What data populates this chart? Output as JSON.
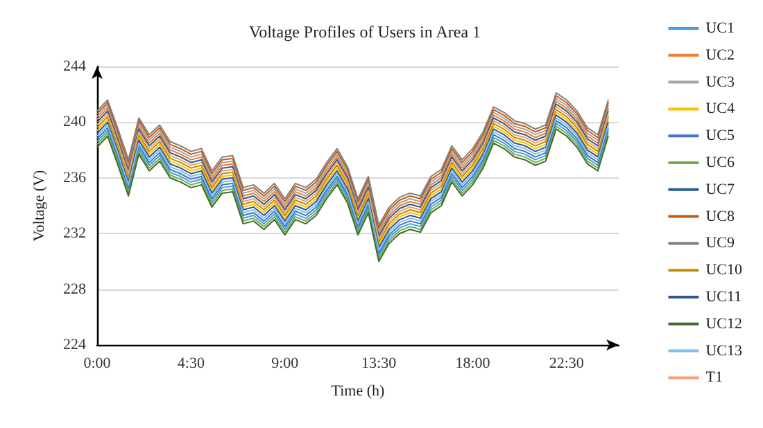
{
  "chart_data": {
    "type": "line",
    "title": "Voltage Profiles of Users in Area 1",
    "xlabel": "Time (h)",
    "ylabel": "Voltage (V)",
    "x": [
      0,
      0.5,
      1,
      1.5,
      2,
      2.5,
      3,
      3.5,
      4,
      4.5,
      5,
      5.5,
      6,
      6.5,
      7,
      7.5,
      8,
      8.5,
      9,
      9.5,
      10,
      10.5,
      11,
      11.5,
      12,
      12.5,
      13,
      13.5,
      14,
      14.5,
      15,
      15.5,
      16,
      16.5,
      17,
      17.5,
      18,
      18.5,
      19,
      19.5,
      20,
      20.5,
      21,
      21.5,
      22,
      22.5,
      23,
      23.5,
      24,
      24.5
    ],
    "xlim": [
      0,
      25
    ],
    "xticks": [
      {
        "value": 0,
        "label": "0:00"
      },
      {
        "value": 4.5,
        "label": "4:30"
      },
      {
        "value": 9,
        "label": "9:00"
      },
      {
        "value": 13.5,
        "label": "13:30"
      },
      {
        "value": 18,
        "label": "18:00"
      },
      {
        "value": 22.5,
        "label": "22:30"
      }
    ],
    "ylim": [
      224,
      244
    ],
    "yticks": [
      224,
      228,
      232,
      236,
      240,
      244
    ],
    "grid": "y",
    "legend": "right",
    "marker": "none",
    "line_style": "solid",
    "series": [
      {
        "name": "UC1",
        "color": "#3fa0e0",
        "values": [
          238.6,
          239.4,
          237.3,
          235.1,
          238.1,
          236.9,
          237.6,
          236.4,
          236.1,
          235.7,
          235.9,
          234.3,
          235.3,
          235.4,
          233.1,
          233.3,
          232.7,
          233.4,
          232.3,
          233.4,
          233.1,
          233.7,
          234.9,
          235.9,
          234.6,
          232.3,
          233.9,
          230.4,
          231.7,
          232.4,
          232.7,
          232.5,
          233.9,
          234.4,
          236.1,
          235.1,
          235.9,
          237.1,
          238.9,
          238.5,
          237.9,
          237.7,
          237.3,
          237.6,
          239.9,
          239.4,
          238.6,
          237.4,
          236.9,
          239.4
        ]
      },
      {
        "name": "UC2",
        "color": "#ed7d31",
        "values": [
          240.2,
          241.0,
          238.9,
          236.7,
          239.7,
          238.5,
          239.2,
          238.0,
          237.7,
          237.3,
          237.5,
          235.9,
          236.9,
          237.0,
          234.7,
          234.9,
          234.3,
          235.0,
          233.9,
          235.0,
          234.7,
          235.3,
          236.5,
          237.5,
          236.2,
          233.9,
          235.5,
          232.0,
          233.3,
          234.0,
          234.3,
          234.1,
          235.5,
          236.0,
          237.7,
          236.7,
          237.5,
          238.7,
          240.5,
          240.1,
          239.5,
          239.3,
          238.9,
          239.2,
          241.5,
          241.0,
          240.2,
          239.0,
          238.5,
          241.0
        ]
      },
      {
        "name": "UC3",
        "color": "#a5a5a5",
        "values": [
          240.4,
          241.2,
          239.1,
          236.9,
          239.9,
          238.7,
          239.4,
          238.2,
          237.9,
          237.5,
          237.7,
          236.1,
          237.1,
          237.2,
          234.9,
          235.1,
          234.5,
          235.2,
          234.1,
          235.2,
          234.9,
          235.5,
          236.7,
          237.7,
          236.4,
          234.1,
          235.7,
          232.2,
          233.5,
          234.2,
          234.5,
          234.3,
          235.7,
          236.2,
          237.9,
          236.9,
          237.7,
          238.9,
          240.7,
          240.3,
          239.7,
          239.5,
          239.1,
          239.4,
          241.7,
          241.2,
          240.4,
          239.2,
          238.7,
          241.2
        ]
      },
      {
        "name": "UC4",
        "color": "#ffc000",
        "values": [
          239.4,
          240.2,
          238.1,
          235.9,
          238.9,
          237.7,
          238.4,
          237.2,
          236.9,
          236.5,
          236.7,
          235.1,
          236.1,
          236.2,
          233.9,
          234.1,
          233.5,
          234.2,
          233.1,
          234.2,
          233.9,
          234.5,
          235.7,
          236.7,
          235.4,
          233.1,
          234.7,
          231.2,
          232.5,
          233.2,
          233.5,
          233.3,
          234.7,
          235.2,
          236.9,
          235.9,
          236.7,
          237.9,
          239.7,
          239.3,
          238.7,
          238.5,
          238.1,
          238.4,
          240.7,
          240.2,
          239.4,
          238.2,
          237.7,
          240.2
        ]
      },
      {
        "name": "UC5",
        "color": "#4472c4",
        "values": [
          238.8,
          239.6,
          237.5,
          235.3,
          238.3,
          237.1,
          237.8,
          236.6,
          236.3,
          235.9,
          236.1,
          234.5,
          235.5,
          235.6,
          233.3,
          233.5,
          232.9,
          233.6,
          232.5,
          233.6,
          233.3,
          233.9,
          235.1,
          236.1,
          234.8,
          232.5,
          234.1,
          230.6,
          231.9,
          232.6,
          232.9,
          232.7,
          234.1,
          234.6,
          236.3,
          235.3,
          236.1,
          237.3,
          239.1,
          238.7,
          238.1,
          237.9,
          237.5,
          237.8,
          240.1,
          239.6,
          238.8,
          237.6,
          237.1,
          239.6
        ]
      },
      {
        "name": "UC6",
        "color": "#70ad47",
        "values": [
          238.4,
          239.2,
          237.1,
          234.9,
          237.9,
          236.7,
          237.4,
          236.2,
          235.9,
          235.5,
          235.7,
          234.1,
          235.1,
          235.2,
          232.9,
          233.1,
          232.5,
          233.2,
          232.1,
          233.2,
          232.9,
          233.5,
          234.7,
          235.7,
          234.4,
          232.1,
          233.7,
          230.2,
          231.5,
          232.2,
          232.5,
          232.3,
          233.7,
          234.2,
          235.9,
          234.9,
          235.7,
          236.9,
          238.7,
          238.3,
          237.7,
          237.5,
          237.1,
          237.4,
          239.7,
          239.2,
          238.4,
          237.2,
          236.7,
          239.2
        ]
      },
      {
        "name": "UC7",
        "color": "#255e91",
        "values": [
          240.0,
          240.8,
          238.7,
          236.5,
          239.5,
          238.3,
          239.0,
          237.8,
          237.5,
          237.1,
          237.3,
          235.7,
          236.7,
          236.8,
          234.5,
          234.7,
          234.1,
          234.8,
          233.7,
          234.8,
          234.5,
          235.1,
          236.3,
          237.3,
          236.0,
          233.7,
          235.3,
          231.8,
          233.1,
          233.8,
          234.1,
          233.9,
          235.3,
          235.8,
          237.5,
          236.5,
          237.3,
          238.5,
          240.3,
          239.9,
          239.3,
          239.1,
          238.7,
          239.0,
          241.3,
          240.8,
          240.0,
          238.8,
          238.3,
          240.8
        ]
      },
      {
        "name": "UC8",
        "color": "#c55a11",
        "values": [
          240.6,
          241.4,
          239.3,
          237.1,
          240.1,
          238.9,
          239.6,
          238.4,
          238.1,
          237.7,
          237.9,
          236.3,
          237.3,
          237.4,
          235.1,
          235.3,
          234.7,
          235.4,
          234.3,
          235.4,
          235.1,
          235.7,
          236.9,
          237.9,
          236.6,
          234.3,
          235.9,
          232.4,
          233.7,
          234.4,
          234.7,
          234.5,
          235.9,
          236.4,
          238.1,
          237.1,
          237.9,
          239.1,
          240.9,
          240.5,
          239.9,
          239.7,
          239.3,
          239.6,
          241.9,
          241.4,
          240.6,
          239.4,
          238.9,
          241.4
        ]
      },
      {
        "name": "UC9",
        "color": "#7f7f7f",
        "values": [
          240.8,
          241.6,
          239.5,
          237.3,
          240.3,
          239.1,
          239.8,
          238.6,
          238.3,
          237.9,
          238.1,
          236.5,
          237.5,
          237.6,
          235.3,
          235.5,
          234.9,
          235.6,
          234.5,
          235.6,
          235.3,
          235.9,
          237.1,
          238.1,
          236.8,
          234.5,
          236.1,
          232.6,
          233.9,
          234.6,
          234.9,
          234.7,
          236.1,
          236.6,
          238.3,
          237.3,
          238.1,
          239.3,
          241.1,
          240.7,
          240.1,
          239.9,
          239.5,
          239.8,
          242.1,
          241.6,
          240.8,
          239.6,
          239.1,
          241.6
        ]
      },
      {
        "name": "UC10",
        "color": "#bf8f00",
        "values": [
          239.6,
          240.4,
          238.3,
          236.1,
          239.1,
          237.9,
          238.6,
          237.4,
          237.1,
          236.7,
          236.9,
          235.3,
          236.3,
          236.4,
          234.1,
          234.3,
          233.7,
          234.4,
          233.3,
          234.4,
          234.1,
          234.7,
          235.9,
          236.9,
          235.6,
          233.3,
          234.9,
          231.4,
          232.7,
          233.4,
          233.7,
          233.5,
          234.9,
          235.4,
          237.1,
          236.1,
          236.9,
          238.1,
          239.9,
          239.5,
          238.9,
          238.7,
          238.3,
          238.6,
          240.9,
          240.4,
          239.6,
          238.4,
          237.9,
          240.4
        ]
      },
      {
        "name": "UC11",
        "color": "#2f5597",
        "values": [
          239.2,
          240.0,
          237.9,
          235.7,
          238.7,
          237.5,
          238.2,
          237.0,
          236.7,
          236.3,
          236.5,
          234.9,
          235.9,
          236.0,
          233.7,
          233.9,
          233.3,
          234.0,
          232.9,
          234.0,
          233.7,
          234.3,
          235.5,
          236.5,
          235.2,
          232.9,
          234.5,
          231.0,
          232.3,
          233.0,
          233.3,
          233.1,
          234.5,
          235.0,
          236.7,
          235.7,
          236.5,
          237.7,
          239.5,
          239.1,
          238.5,
          238.3,
          237.9,
          238.2,
          240.5,
          240.0,
          239.2,
          238.0,
          237.5,
          240.0
        ]
      },
      {
        "name": "UC12",
        "color": "#43682b",
        "values": [
          238.2,
          239.0,
          236.9,
          234.7,
          237.7,
          236.5,
          237.2,
          236.0,
          235.7,
          235.3,
          235.5,
          233.9,
          234.9,
          235.0,
          232.7,
          232.9,
          232.3,
          233.0,
          231.9,
          233.0,
          232.7,
          233.3,
          234.5,
          235.5,
          234.2,
          231.9,
          233.5,
          230.0,
          231.3,
          232.0,
          232.3,
          232.1,
          233.5,
          234.0,
          235.7,
          234.7,
          235.5,
          236.7,
          238.5,
          238.1,
          237.5,
          237.3,
          236.9,
          237.2,
          239.5,
          239.0,
          238.2,
          237.0,
          236.5,
          239.0
        ]
      },
      {
        "name": "UC13",
        "color": "#7cc0ee",
        "values": [
          239.0,
          239.8,
          237.7,
          235.5,
          238.5,
          237.3,
          238.0,
          236.8,
          236.5,
          236.1,
          236.3,
          234.7,
          235.7,
          235.8,
          233.5,
          233.7,
          233.1,
          233.8,
          232.7,
          233.8,
          233.5,
          234.1,
          235.3,
          236.3,
          235.0,
          232.7,
          234.3,
          230.8,
          232.1,
          232.8,
          233.1,
          232.9,
          234.3,
          234.8,
          236.5,
          235.5,
          236.3,
          237.5,
          239.3,
          238.9,
          238.3,
          238.1,
          237.7,
          238.0,
          240.3,
          239.8,
          239.0,
          237.8,
          237.3,
          239.8
        ]
      },
      {
        "name": "T1",
        "color": "#f4a06a",
        "values": [
          239.8,
          240.6,
          238.5,
          236.3,
          239.3,
          238.1,
          238.8,
          237.6,
          237.3,
          236.9,
          237.1,
          235.5,
          236.5,
          236.6,
          234.3,
          234.5,
          233.9,
          234.6,
          233.5,
          234.6,
          234.3,
          234.9,
          236.1,
          237.1,
          235.8,
          233.5,
          235.1,
          231.6,
          232.9,
          233.6,
          233.9,
          233.7,
          235.1,
          235.6,
          237.3,
          236.3,
          237.1,
          238.3,
          240.1,
          239.7,
          239.1,
          238.9,
          238.5,
          238.8,
          241.1,
          240.6,
          239.8,
          238.6,
          238.1,
          240.6
        ]
      }
    ]
  }
}
